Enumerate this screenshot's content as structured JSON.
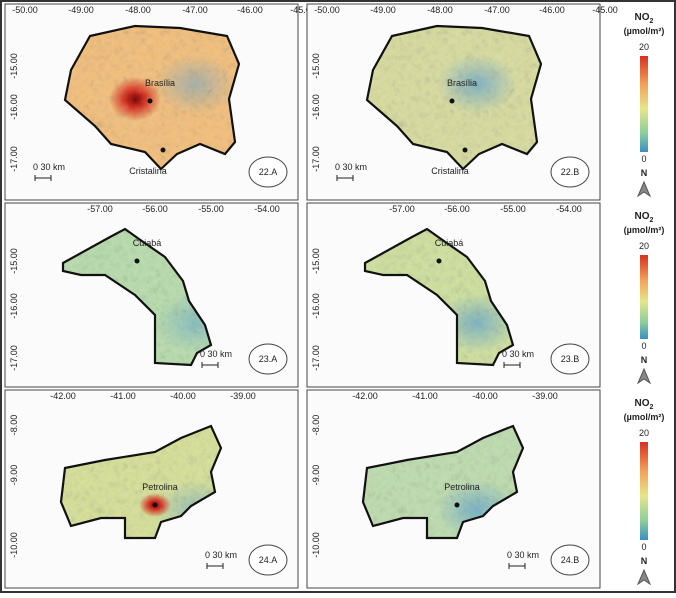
{
  "legend": {
    "title": "NO",
    "title_sub": "2",
    "unit": "(µmol/m²)",
    "max": "20",
    "min": "0",
    "north": "N"
  },
  "rows": [
    {
      "top_ticks": [
        "-50.00",
        "-49.00",
        "-48.00",
        "-47.00",
        "-46.00",
        "-45.00"
      ],
      "left_ticks": [
        "-15.00",
        "-16.00",
        "-17.00"
      ],
      "panels": [
        {
          "label": "22.A",
          "cities": [
            "Brasília",
            "Cristalina"
          ],
          "scale": "0 30 km"
        },
        {
          "label": "22.B",
          "cities": [
            "Brasília",
            "Cristalina"
          ],
          "scale": "0 30 km"
        }
      ]
    },
    {
      "top_ticks": [
        "-57.00",
        "-56.00",
        "-55.00",
        "-54.00"
      ],
      "left_ticks": [
        "-15.00",
        "-16.00",
        "-17.00"
      ],
      "panels": [
        {
          "label": "23.A",
          "cities": [
            "Cuiabá"
          ],
          "scale": "0 30 km"
        },
        {
          "label": "23.B",
          "cities": [
            "Cuiabá"
          ],
          "scale": "0 30 km"
        }
      ]
    },
    {
      "top_ticks": [
        "-42.00",
        "-41.00",
        "-40.00",
        "-39.00"
      ],
      "left_ticks": [
        "-8.00",
        "-9.00",
        "-10.00"
      ],
      "panels": [
        {
          "label": "24.A",
          "cities": [
            "Petrolina"
          ],
          "scale": "0 30 km"
        },
        {
          "label": "24.B",
          "cities": [
            "Petrolina"
          ],
          "scale": "0 30 km"
        }
      ]
    }
  ]
}
